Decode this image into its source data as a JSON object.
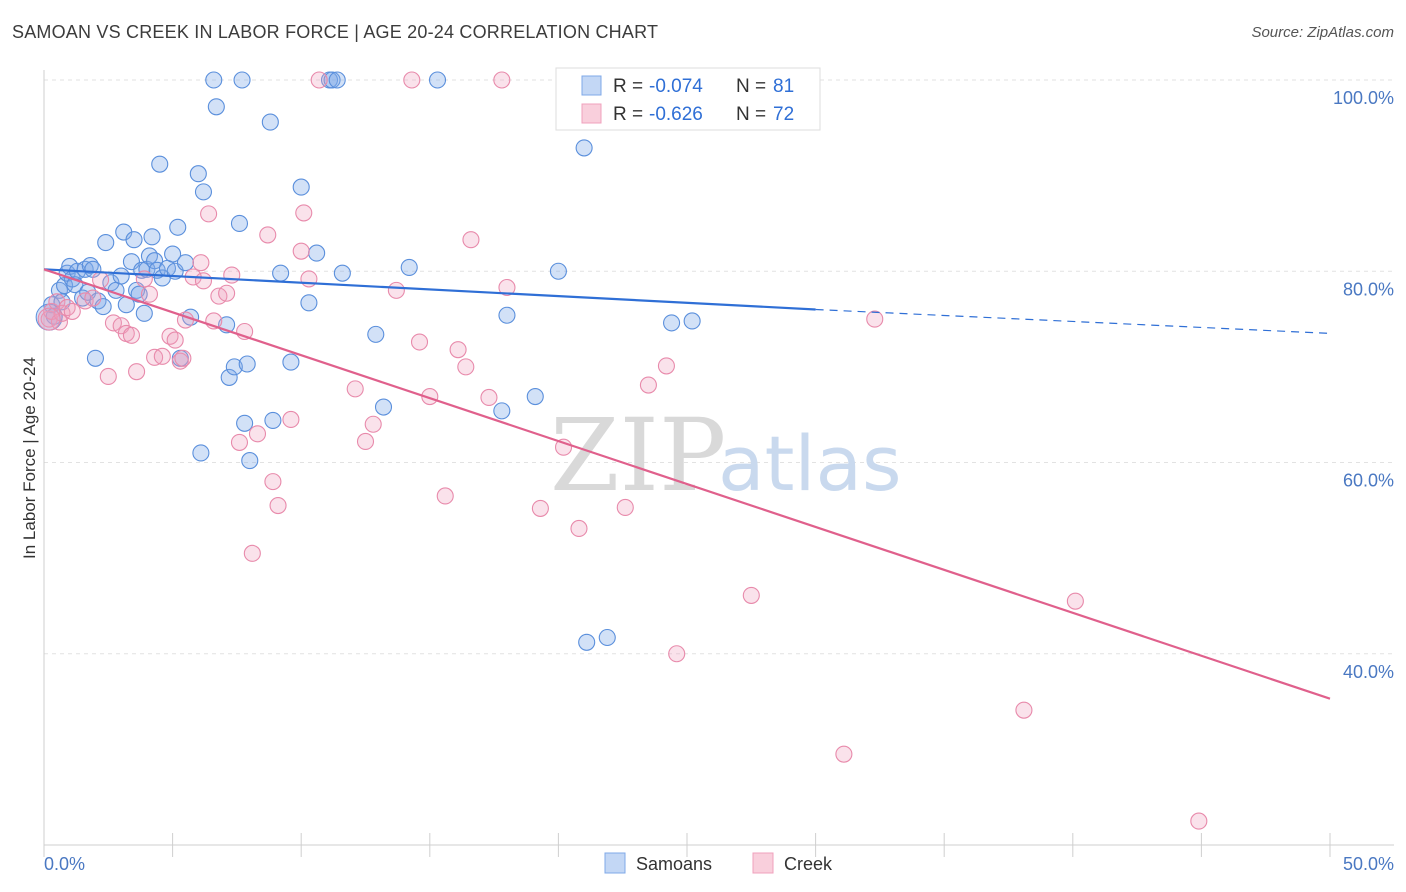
{
  "title": "SAMOAN VS CREEK IN LABOR FORCE | AGE 20-24 CORRELATION CHART",
  "source": "Source: ZipAtlas.com",
  "watermark": {
    "zip": "ZIP",
    "atlas": "atlas"
  },
  "legend": {
    "r_label": "R = ",
    "n_label": "N = ",
    "rows": [
      {
        "r": "-0.074",
        "n": "81",
        "color": "#7fa8e8"
      },
      {
        "r": "-0.626",
        "n": "72",
        "color": "#f0a0bc"
      }
    ]
  },
  "bottom_legend": [
    "Samoans",
    "Creek"
  ],
  "chart_data": {
    "type": "scatter",
    "ylabel": "In Labor Force | Age 20-24",
    "xlabel": "",
    "xlim": [
      0,
      50
    ],
    "ylim": [
      20,
      100
    ],
    "y_ticks": [
      {
        "value": 100,
        "label": "100.0%"
      },
      {
        "value": 80,
        "label": "80.0%"
      },
      {
        "value": 60,
        "label": "60.0%"
      },
      {
        "value": 40,
        "label": "40.0%"
      }
    ],
    "x_tick_labels": [
      {
        "value": 0,
        "label": "0.0%"
      },
      {
        "value": 50,
        "label": "50.0%"
      }
    ],
    "grid": true,
    "series": [
      {
        "name": "Samoans",
        "color": "#7fa8e8",
        "stroke": "#5a8fdc",
        "trend": {
          "x0": 0,
          "y0": 80.2,
          "x1": 30,
          "y1": 76.0,
          "dash_to_x": 50,
          "dash_to_y": 73.5,
          "color": "#2f6fd6"
        },
        "points": [
          [
            0.3,
            76.5
          ],
          [
            0.4,
            75.3
          ],
          [
            0.6,
            78.0
          ],
          [
            0.7,
            76.8
          ],
          [
            0.8,
            78.5
          ],
          [
            0.9,
            79.8
          ],
          [
            1.0,
            80.5
          ],
          [
            1.1,
            79.2
          ],
          [
            1.2,
            78.6
          ],
          [
            1.3,
            80.0
          ],
          [
            1.5,
            77.2
          ],
          [
            1.6,
            80.2
          ],
          [
            1.7,
            77.8
          ],
          [
            1.8,
            80.6
          ],
          [
            1.9,
            80.2
          ],
          [
            2.0,
            70.9
          ],
          [
            2.1,
            76.9
          ],
          [
            2.3,
            76.3
          ],
          [
            2.4,
            83.0
          ],
          [
            2.6,
            78.8
          ],
          [
            2.8,
            78.0
          ],
          [
            3.0,
            79.5
          ],
          [
            3.1,
            84.1
          ],
          [
            3.2,
            76.5
          ],
          [
            3.4,
            81.0
          ],
          [
            3.5,
            83.3
          ],
          [
            3.6,
            78.0
          ],
          [
            3.7,
            77.6
          ],
          [
            3.8,
            80.1
          ],
          [
            3.9,
            75.6
          ],
          [
            4.0,
            80.2
          ],
          [
            4.1,
            81.6
          ],
          [
            4.2,
            83.6
          ],
          [
            4.3,
            81.1
          ],
          [
            4.4,
            80.1
          ],
          [
            4.5,
            91.2
          ],
          [
            4.6,
            79.3
          ],
          [
            4.8,
            80.3
          ],
          [
            5.0,
            81.8
          ],
          [
            5.1,
            80.0
          ],
          [
            5.2,
            84.6
          ],
          [
            5.3,
            70.9
          ],
          [
            5.5,
            80.9
          ],
          [
            5.7,
            75.2
          ],
          [
            6.0,
            90.2
          ],
          [
            6.1,
            61.0
          ],
          [
            6.2,
            88.3
          ],
          [
            6.6,
            100.0
          ],
          [
            6.7,
            97.2
          ],
          [
            7.1,
            74.4
          ],
          [
            7.2,
            68.9
          ],
          [
            7.4,
            70.0
          ],
          [
            7.6,
            85.0
          ],
          [
            7.9,
            70.3
          ],
          [
            8.0,
            60.2
          ],
          [
            7.8,
            64.1
          ],
          [
            7.7,
            100.0
          ],
          [
            8.8,
            95.6
          ],
          [
            8.9,
            64.4
          ],
          [
            9.2,
            79.8
          ],
          [
            9.6,
            70.5
          ],
          [
            10.0,
            88.8
          ],
          [
            10.3,
            76.7
          ],
          [
            10.6,
            81.9
          ],
          [
            11.1,
            100.0
          ],
          [
            11.2,
            100.0
          ],
          [
            11.4,
            100.0
          ],
          [
            11.6,
            79.8
          ],
          [
            12.9,
            73.4
          ],
          [
            13.2,
            65.8
          ],
          [
            14.2,
            80.4
          ],
          [
            15.3,
            100.0
          ],
          [
            17.8,
            65.4
          ],
          [
            18.0,
            75.4
          ],
          [
            19.1,
            66.9
          ],
          [
            20.0,
            80.0
          ],
          [
            21.0,
            92.9
          ],
          [
            21.1,
            41.2
          ],
          [
            21.9,
            41.7
          ],
          [
            24.4,
            74.6
          ],
          [
            25.2,
            74.8
          ]
        ]
      },
      {
        "name": "Creek",
        "color": "#f0a0bc",
        "stroke": "#e88aab",
        "trend": {
          "x0": 0,
          "y0": 80.2,
          "x1": 50,
          "y1": 35.3,
          "color": "#e0608c"
        },
        "points": [
          [
            0.2,
            75.0
          ],
          [
            0.3,
            75.8
          ],
          [
            0.5,
            76.8
          ],
          [
            0.6,
            74.7
          ],
          [
            0.7,
            75.6
          ],
          [
            0.9,
            76.2
          ],
          [
            1.1,
            75.8
          ],
          [
            1.6,
            76.9
          ],
          [
            1.9,
            77.2
          ],
          [
            2.2,
            79.1
          ],
          [
            2.5,
            69.0
          ],
          [
            2.7,
            74.6
          ],
          [
            3.0,
            74.3
          ],
          [
            3.2,
            73.5
          ],
          [
            3.4,
            73.3
          ],
          [
            3.6,
            69.5
          ],
          [
            3.9,
            79.2
          ],
          [
            4.1,
            77.6
          ],
          [
            4.3,
            71.0
          ],
          [
            4.6,
            71.1
          ],
          [
            4.9,
            73.2
          ],
          [
            5.1,
            72.8
          ],
          [
            5.3,
            70.6
          ],
          [
            5.4,
            70.9
          ],
          [
            5.5,
            74.9
          ],
          [
            5.8,
            79.4
          ],
          [
            6.1,
            80.9
          ],
          [
            6.2,
            79.0
          ],
          [
            6.4,
            86.0
          ],
          [
            6.6,
            74.8
          ],
          [
            6.8,
            77.4
          ],
          [
            7.1,
            77.7
          ],
          [
            7.3,
            79.6
          ],
          [
            7.6,
            62.1
          ],
          [
            7.8,
            73.7
          ],
          [
            8.1,
            50.5
          ],
          [
            8.3,
            63.0
          ],
          [
            8.7,
            83.8
          ],
          [
            8.9,
            58.0
          ],
          [
            9.1,
            55.5
          ],
          [
            9.6,
            64.5
          ],
          [
            10.0,
            82.1
          ],
          [
            10.1,
            86.1
          ],
          [
            10.3,
            79.2
          ],
          [
            12.1,
            67.7
          ],
          [
            12.5,
            62.2
          ],
          [
            12.8,
            64.0
          ],
          [
            13.7,
            78.0
          ],
          [
            14.3,
            100.0
          ],
          [
            14.6,
            72.6
          ],
          [
            15.0,
            66.9
          ],
          [
            15.6,
            56.5
          ],
          [
            16.1,
            71.8
          ],
          [
            16.4,
            70.0
          ],
          [
            16.6,
            83.3
          ],
          [
            17.3,
            66.8
          ],
          [
            17.8,
            100.0
          ],
          [
            18.0,
            78.3
          ],
          [
            19.3,
            55.2
          ],
          [
            20.2,
            61.6
          ],
          [
            20.8,
            53.1
          ],
          [
            22.6,
            55.3
          ],
          [
            23.5,
            68.1
          ],
          [
            24.2,
            70.1
          ],
          [
            24.6,
            40.0
          ],
          [
            27.5,
            46.1
          ],
          [
            31.1,
            29.5
          ],
          [
            32.3,
            75.0
          ],
          [
            38.1,
            34.1
          ],
          [
            40.1,
            45.5
          ],
          [
            44.9,
            22.5
          ],
          [
            10.7,
            100.0
          ]
        ]
      }
    ]
  }
}
